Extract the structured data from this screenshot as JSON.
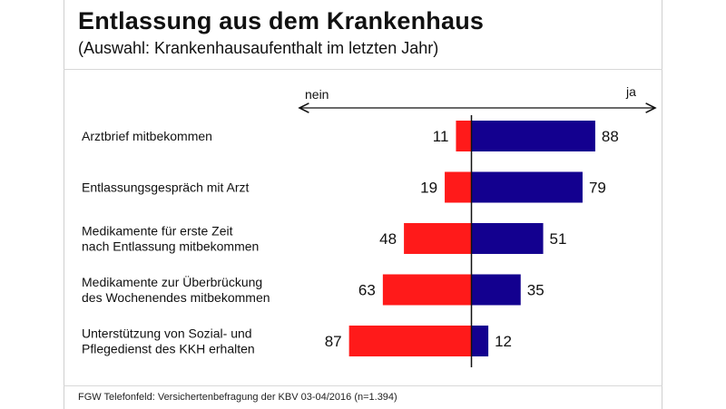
{
  "header": {
    "title": "Entlassung aus dem Krankenhaus",
    "subtitle": "(Auswahl: Krankenhausaufenthalt im letzten Jahr)"
  },
  "footer": {
    "source": "FGW Telefonfeld: Versichertenbefragung der KBV 03-04/2016 (n=1.394)"
  },
  "chart_data": {
    "type": "bar",
    "orientation": "horizontal-diverging",
    "direction_labels": {
      "left": "nein",
      "right": "ja"
    },
    "categories": [
      [
        "Arztbrief mitbekommen"
      ],
      [
        "Entlassungsgespräch mit Arzt"
      ],
      [
        "Medikamente für erste Zeit",
        "nach Entlassung mitbekommen"
      ],
      [
        "Medikamente zur Überbrückung",
        "des Wochenendes mitbekommen"
      ],
      [
        "Unterstützung von Sozial- und",
        "Pflegedienst des KKH erhalten"
      ]
    ],
    "series": [
      {
        "key": "nein",
        "color": "#ff1a1a",
        "values": [
          11,
          19,
          48,
          63,
          87
        ]
      },
      {
        "key": "ja",
        "color": "#13008f",
        "values": [
          88,
          79,
          51,
          35,
          12
        ]
      }
    ]
  }
}
